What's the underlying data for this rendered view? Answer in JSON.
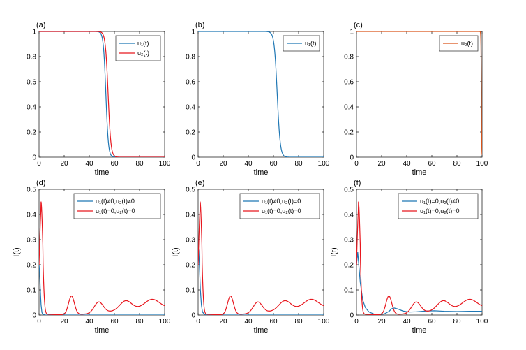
{
  "colors": {
    "blue": "#1f77b4",
    "red": "#e8171e",
    "orange": "#d95319"
  },
  "chart_data": [
    {
      "id": "a",
      "label": "(a)",
      "type": "line",
      "xlabel": "time",
      "ylabel": "",
      "xlim": [
        0,
        100
      ],
      "ylim": [
        0,
        1
      ],
      "xticks": [
        "0",
        "20",
        "40",
        "60",
        "80",
        "100"
      ],
      "yticks": [
        "0",
        "0.2",
        "0.4",
        "0.6",
        "0.8",
        "1"
      ],
      "legend": {
        "position": "top-right",
        "entries": [
          {
            "text": "u₁(t)",
            "series": "u1"
          },
          {
            "text": "u₂(t)",
            "series": "u2"
          }
        ]
      },
      "series": [
        {
          "name": "u1",
          "color": "blue",
          "fn": "switch",
          "t0": 53.2,
          "tau": 1.0
        },
        {
          "name": "u2",
          "color": "red",
          "fn": "switch",
          "t0": 55.0,
          "tau": 1.1
        }
      ]
    },
    {
      "id": "b",
      "label": "(b)",
      "type": "line",
      "xlabel": "time",
      "ylabel": "",
      "xlim": [
        0,
        100
      ],
      "ylim": [
        0,
        1
      ],
      "xticks": [
        "0",
        "20",
        "40",
        "60",
        "80",
        "100"
      ],
      "yticks": [
        "0",
        "0.2",
        "0.4",
        "0.6",
        "0.8",
        "1"
      ],
      "legend": {
        "position": "top-right",
        "entries": [
          {
            "text": "u₁(t)",
            "series": "u1"
          }
        ]
      },
      "series": [
        {
          "name": "u1",
          "color": "blue",
          "fn": "switch",
          "t0": 63.0,
          "tau": 1.2
        }
      ]
    },
    {
      "id": "c",
      "label": "(c)",
      "type": "line",
      "xlabel": "time",
      "ylabel": "",
      "xlim": [
        0,
        100
      ],
      "ylim": [
        0,
        1
      ],
      "xticks": [
        "0",
        "20",
        "40",
        "60",
        "80",
        "100"
      ],
      "yticks": [
        "0",
        "0.2",
        "0.4",
        "0.6",
        "0.8",
        "1"
      ],
      "legend": {
        "position": "top-right",
        "entries": [
          {
            "text": "u₂(t)",
            "series": "u2"
          }
        ]
      },
      "series": [
        {
          "name": "u2",
          "color": "orange",
          "fn": "switch",
          "t0": 99.4,
          "tau": 0.15
        }
      ]
    },
    {
      "id": "d",
      "label": "(d)",
      "type": "line",
      "xlabel": "time",
      "ylabel": "I(t)",
      "xlim": [
        0,
        100
      ],
      "ylim": [
        0,
        0.5
      ],
      "xticks": [
        "0",
        "20",
        "40",
        "60",
        "80",
        "100"
      ],
      "yticks": [
        "0",
        "0.1",
        "0.2",
        "0.3",
        "0.4",
        "0.5"
      ],
      "legend": {
        "position": "top-right",
        "entries": [
          {
            "text": "u₁(t)≠0,u₂(t)≠0",
            "series": "ctrl"
          },
          {
            "text": "u₁(t)=0,u₂(t)=0",
            "series": "none"
          }
        ]
      },
      "series": [
        {
          "name": "ctrl",
          "color": "blue",
          "points": [
            [
              0,
              0.2
            ],
            [
              0.5,
              0.17
            ],
            [
              1,
              0.1
            ],
            [
              1.6,
              0.04
            ],
            [
              2.3,
              0.01
            ],
            [
              3,
              0.003
            ],
            [
              5,
              0
            ],
            [
              100,
              0
            ]
          ]
        },
        {
          "name": "none",
          "color": "red",
          "fn": "epidemic"
        }
      ]
    },
    {
      "id": "e",
      "label": "(e)",
      "type": "line",
      "xlabel": "time",
      "ylabel": "I(t)",
      "xlim": [
        0,
        100
      ],
      "ylim": [
        0,
        0.5
      ],
      "xticks": [
        "0",
        "20",
        "40",
        "60",
        "80",
        "100"
      ],
      "yticks": [
        "0",
        "0.1",
        "0.2",
        "0.3",
        "0.4",
        "0.5"
      ],
      "legend": {
        "position": "top-right",
        "entries": [
          {
            "text": "u₁(t)≠0,u₂(t)=0",
            "series": "ctrl"
          },
          {
            "text": "u₁(t)=0,u₂(t)=0",
            "series": "none"
          }
        ]
      },
      "series": [
        {
          "name": "ctrl",
          "color": "blue",
          "points": [
            [
              0,
              0.2
            ],
            [
              0.5,
              0.26
            ],
            [
              1,
              0.2
            ],
            [
              1.8,
              0.1
            ],
            [
              2.6,
              0.04
            ],
            [
              3.5,
              0.012
            ],
            [
              5,
              0.003
            ],
            [
              7,
              0
            ],
            [
              100,
              0
            ]
          ]
        },
        {
          "name": "none",
          "color": "red",
          "fn": "epidemic"
        }
      ]
    },
    {
      "id": "f",
      "label": "(f)",
      "type": "line",
      "xlabel": "time",
      "ylabel": "I(t)",
      "xlim": [
        0,
        100
      ],
      "ylim": [
        0,
        0.5
      ],
      "xticks": [
        "0",
        "20",
        "40",
        "60",
        "80",
        "100"
      ],
      "yticks": [
        "0",
        "0.1",
        "0.2",
        "0.3",
        "0.4",
        "0.5"
      ],
      "legend": {
        "position": "top-right",
        "entries": [
          {
            "text": "u₁(t)=0,u₂(t)≠0",
            "series": "ctrl"
          },
          {
            "text": "u₁(t)=0,u₂(t)=0",
            "series": "none"
          }
        ]
      },
      "series": [
        {
          "name": "ctrl",
          "color": "blue",
          "points": [
            [
              0,
              0.2
            ],
            [
              1,
              0.25
            ],
            [
              2,
              0.19
            ],
            [
              3,
              0.13
            ],
            [
              5,
              0.06
            ],
            [
              7,
              0.03
            ],
            [
              10,
              0.012
            ],
            [
              14,
              0.004
            ],
            [
              18,
              0.002
            ],
            [
              22,
              0.004
            ],
            [
              26,
              0.015
            ],
            [
              28,
              0.025
            ],
            [
              30,
              0.028
            ],
            [
              33,
              0.024
            ],
            [
              37,
              0.016
            ],
            [
              42,
              0.012
            ],
            [
              48,
              0.013
            ],
            [
              55,
              0.016
            ],
            [
              62,
              0.017
            ],
            [
              70,
              0.015
            ],
            [
              80,
              0.014
            ],
            [
              90,
              0.015
            ],
            [
              100,
              0.015
            ]
          ]
        },
        {
          "name": "none",
          "color": "red",
          "fn": "epidemic"
        }
      ]
    }
  ]
}
